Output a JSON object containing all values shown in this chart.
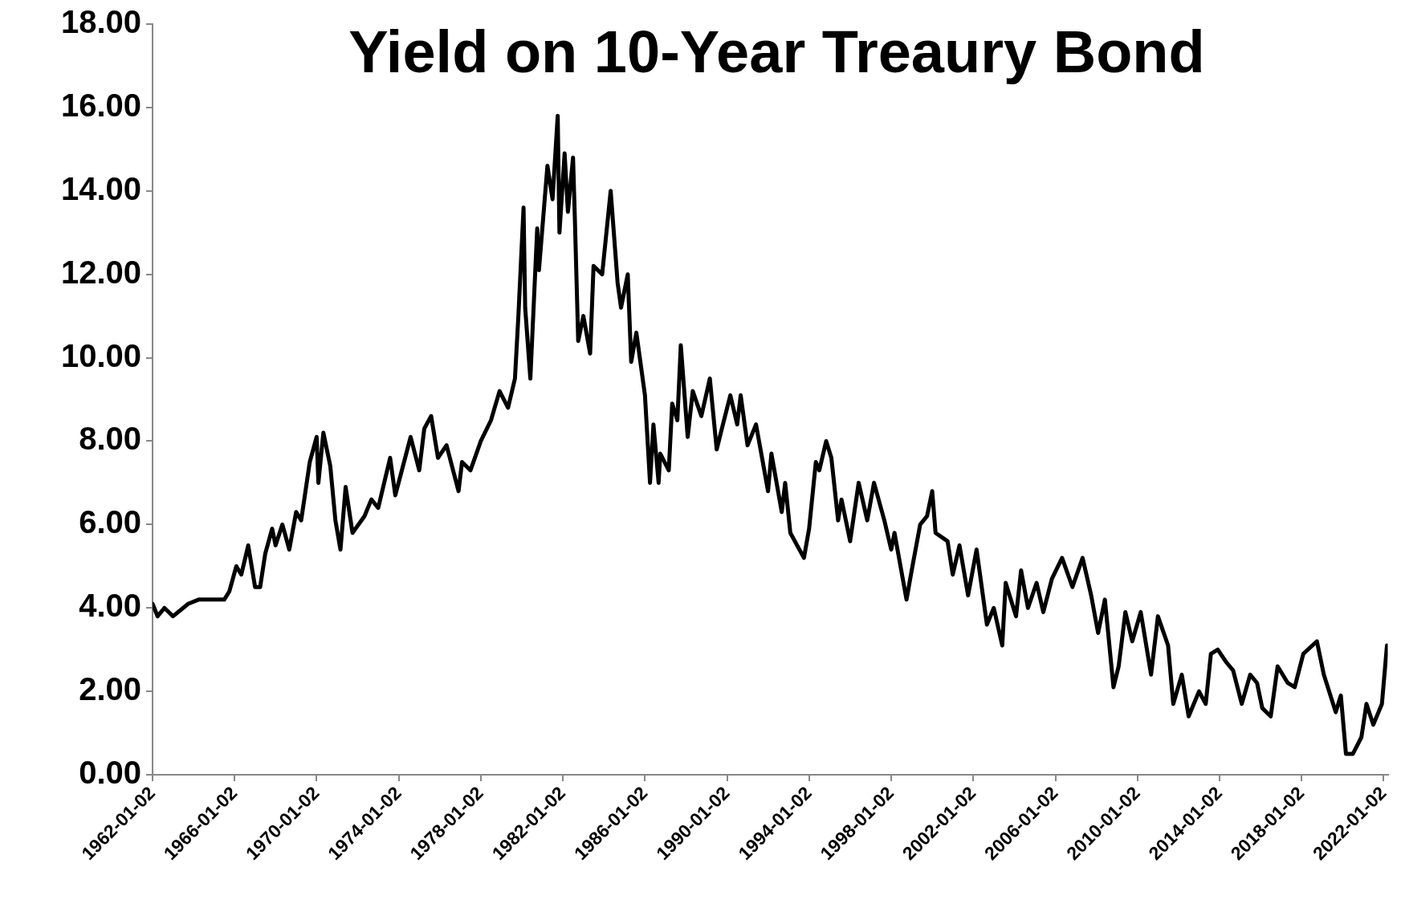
{
  "chart_data": {
    "type": "line",
    "title": "Yield on 10-Year Treaury Bond",
    "x": [
      "1962-01-02",
      "1962-04",
      "1962-08",
      "1963-01",
      "1963-10",
      "1964-04",
      "1965-07",
      "1965-10",
      "1966-02",
      "1966-05",
      "1966-09",
      "1967-01",
      "1967-04",
      "1967-07",
      "1967-11",
      "1968-01",
      "1968-05",
      "1968-09",
      "1969-01",
      "1969-04",
      "1969-09",
      "1970-01",
      "1970-02",
      "1970-05",
      "1970-09",
      "1970-12",
      "1971-03",
      "1971-06",
      "1971-10",
      "1972-05",
      "1972-09",
      "1973-01",
      "1973-08",
      "1973-11",
      "1974-08",
      "1975-01",
      "1975-04",
      "1975-08",
      "1975-12",
      "1976-05",
      "1976-12",
      "1977-02",
      "1977-07",
      "1978-01",
      "1978-07",
      "1978-12",
      "1979-05",
      "1979-09",
      "1979-11",
      "1980-02",
      "1980-03",
      "1980-06",
      "1980-10",
      "1980-11",
      "1981-04",
      "1981-07",
      "1981-10",
      "1981-11",
      "1982-02",
      "1982-04",
      "1982-07",
      "1982-08",
      "1982-10",
      "1983-01",
      "1983-05",
      "1983-07",
      "1983-12",
      "1984-05",
      "1984-09",
      "1984-11",
      "1985-03",
      "1985-05",
      "1985-08",
      "1986-01",
      "1986-04",
      "1986-06",
      "1986-09",
      "1986-10",
      "1987-03",
      "1987-05",
      "1987-08",
      "1987-10",
      "1988-02",
      "1988-05",
      "1988-10",
      "1989-03",
      "1989-07",
      "1989-10",
      "1990-03",
      "1990-07",
      "1990-09",
      "1991-01",
      "1991-06",
      "1992-01",
      "1992-03",
      "1992-09",
      "1992-11",
      "1993-02",
      "1993-10",
      "1994-01",
      "1994-05",
      "1994-07",
      "1994-11",
      "1995-02",
      "1995-06",
      "1995-08",
      "1996-01",
      "1996-06",
      "1996-11",
      "1997-03",
      "1997-09",
      "1998-01",
      "1998-03",
      "1998-10",
      "1999-01",
      "1999-06",
      "1999-10",
      "2000-01",
      "2000-03",
      "2000-10",
      "2001-01",
      "2001-05",
      "2001-10",
      "2002-03",
      "2002-09",
      "2003-01",
      "2003-06",
      "2003-08",
      "2004-02",
      "2004-05",
      "2004-09",
      "2005-02",
      "2005-06",
      "2005-11",
      "2006-05",
      "2006-11",
      "2007-05",
      "2007-10",
      "2008-02",
      "2008-06",
      "2008-11",
      "2009-02",
      "2009-06",
      "2009-10",
      "2010-03",
      "2010-09",
      "2011-01",
      "2011-07",
      "2011-10",
      "2012-03",
      "2012-07",
      "2013-01",
      "2013-05",
      "2013-08",
      "2013-12",
      "2014-05",
      "2014-09",
      "2015-02",
      "2015-07",
      "2015-11",
      "2016-02",
      "2016-07",
      "2016-11",
      "2017-05",
      "2017-09",
      "2018-02",
      "2018-10",
      "2019-02",
      "2019-09",
      "2019-12",
      "2020-03",
      "2020-07",
      "2020-12",
      "2021-03",
      "2021-07",
      "2021-12",
      "2022-03"
    ],
    "series": [
      {
        "color": "#000000",
        "values": [
          4.1,
          3.8,
          4.0,
          3.8,
          4.1,
          4.2,
          4.2,
          4.4,
          5.0,
          4.8,
          5.5,
          4.5,
          4.5,
          5.3,
          5.9,
          5.5,
          6.0,
          5.4,
          6.3,
          6.1,
          7.5,
          8.1,
          7.0,
          8.2,
          7.4,
          6.1,
          5.4,
          6.9,
          5.8,
          6.2,
          6.6,
          6.4,
          7.6,
          6.7,
          8.1,
          7.3,
          8.3,
          8.6,
          7.6,
          7.9,
          6.8,
          7.5,
          7.3,
          8.0,
          8.5,
          9.2,
          8.8,
          9.5,
          11.0,
          13.6,
          11.2,
          9.5,
          13.1,
          12.1,
          14.6,
          13.8,
          15.8,
          13.0,
          14.9,
          13.5,
          14.8,
          13.4,
          10.4,
          11.0,
          10.1,
          12.2,
          12.0,
          14.0,
          11.8,
          11.2,
          12.0,
          9.9,
          10.6,
          9.1,
          7.0,
          8.4,
          7.0,
          7.7,
          7.3,
          8.9,
          8.5,
          10.3,
          8.1,
          9.2,
          8.6,
          9.5,
          7.8,
          8.3,
          9.1,
          8.4,
          9.1,
          7.9,
          8.4,
          6.8,
          7.7,
          6.3,
          7.0,
          5.8,
          5.2,
          5.9,
          7.5,
          7.3,
          8.0,
          7.6,
          6.1,
          6.6,
          5.6,
          7.0,
          6.1,
          7.0,
          6.1,
          5.4,
          5.8,
          4.2,
          4.9,
          6.0,
          6.2,
          6.8,
          5.8,
          5.6,
          4.8,
          5.5,
          4.3,
          5.4,
          3.6,
          4.0,
          3.1,
          4.6,
          3.8,
          4.9,
          4.0,
          4.6,
          3.9,
          4.7,
          5.2,
          4.5,
          5.2,
          4.3,
          3.4,
          4.2,
          2.1,
          2.6,
          3.9,
          3.2,
          3.9,
          2.4,
          3.8,
          3.1,
          1.7,
          2.4,
          1.4,
          2.0,
          1.7,
          2.9,
          3.0,
          2.7,
          2.5,
          1.7,
          2.4,
          2.2,
          1.6,
          1.4,
          2.6,
          2.2,
          2.1,
          2.9,
          3.2,
          2.4,
          1.5,
          1.9,
          0.5,
          0.5,
          0.9,
          1.7,
          1.2,
          1.7,
          3.1
        ]
      }
    ],
    "xlim": [
      "1962-01-02",
      "2022-03-15"
    ],
    "xticks": [
      "1962-01-02",
      "1966-01-02",
      "1970-01-02",
      "1974-01-02",
      "1978-01-02",
      "1982-01-02",
      "1986-01-02",
      "1990-01-02",
      "1994-01-02",
      "1998-01-02",
      "2002-01-02",
      "2006-01-02",
      "2010-01-02",
      "2014-01-02",
      "2018-01-02",
      "2022-01-02"
    ],
    "ylim": [
      0,
      18
    ],
    "yticks": [
      {
        "value": 0,
        "label": "0.00"
      },
      {
        "value": 2,
        "label": "2.00"
      },
      {
        "value": 4,
        "label": "4.00"
      },
      {
        "value": 6,
        "label": "6.00"
      },
      {
        "value": 8,
        "label": "8.00"
      },
      {
        "value": 10,
        "label": "10.00"
      },
      {
        "value": 12,
        "label": "12.00"
      },
      {
        "value": 14,
        "label": "14.00"
      },
      {
        "value": 16,
        "label": "16.00"
      },
      {
        "value": 18,
        "label": "18.00"
      }
    ],
    "marker": "none",
    "line_style": "solid"
  }
}
